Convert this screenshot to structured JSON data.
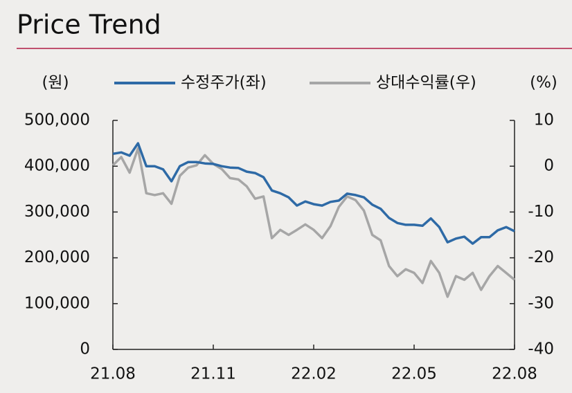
{
  "chart_data": {
    "type": "line",
    "title": "Price Trend",
    "y_unit_label": "(원)",
    "y2_unit_label": "(%)",
    "x": [
      0,
      0.25,
      0.5,
      0.75,
      1,
      1.25,
      1.5,
      1.75,
      2,
      2.25,
      2.5,
      2.75,
      3,
      3.25,
      3.5,
      3.75,
      4,
      4.25,
      4.5,
      4.75,
      5,
      5.25,
      5.5,
      5.75,
      6,
      6.25,
      6.5,
      6.75,
      7,
      7.25,
      7.5,
      7.75,
      8,
      8.25,
      8.5,
      8.75,
      9,
      9.25,
      9.5,
      9.75,
      10,
      10.25,
      10.5,
      10.75,
      11,
      11.25,
      11.5,
      11.75,
      12
    ],
    "xlim": [
      0,
      12
    ],
    "xticks": [
      {
        "value": 0,
        "label": "21.08"
      },
      {
        "value": 3,
        "label": "21.11"
      },
      {
        "value": 6,
        "label": "22.02"
      },
      {
        "value": 9,
        "label": "22.05"
      },
      {
        "value": 12,
        "label": "22.08"
      }
    ],
    "ylim": [
      0,
      500000
    ],
    "yticks": [
      0,
      {
        "value": 100000,
        "label": "100,000"
      },
      {
        "value": 200000,
        "label": "200,000"
      },
      {
        "value": 300000,
        "label": "300,000"
      },
      {
        "value": 400000,
        "label": "400,000"
      },
      {
        "value": 500000,
        "label": "500,000"
      }
    ],
    "y2lim": [
      -40,
      10
    ],
    "y2ticks": [
      -40,
      -30,
      -20,
      -10,
      0,
      10
    ],
    "legend": "top",
    "series": [
      {
        "name": "수정주가(좌)",
        "color": "#2e6aa6",
        "axis": "y",
        "values": [
          427000,
          430000,
          423000,
          450000,
          400000,
          400000,
          393000,
          367000,
          400000,
          409000,
          409000,
          406000,
          405000,
          400000,
          397000,
          396000,
          388000,
          385000,
          376000,
          347000,
          341000,
          332000,
          314000,
          323000,
          317000,
          314000,
          322000,
          325000,
          340000,
          337000,
          332000,
          316000,
          307000,
          287000,
          276000,
          272000,
          272000,
          270000,
          286000,
          267000,
          234000,
          242000,
          246000,
          231000,
          245000,
          245000,
          260000,
          267000,
          258000
        ]
      },
      {
        "name": "상대수익률(우)",
        "color": "#a6a6a6",
        "axis": "y2",
        "values": [
          0.2,
          2.0,
          -1.4,
          3.9,
          -5.9,
          -6.3,
          -5.9,
          -8.2,
          -2.1,
          -0.3,
          0.2,
          2.4,
          0.5,
          -0.6,
          -2.6,
          -2.9,
          -4.4,
          -7.1,
          -6.6,
          -15.7,
          -13.9,
          -15.0,
          -13.9,
          -12.7,
          -13.9,
          -15.7,
          -13.1,
          -8.9,
          -6.6,
          -7.4,
          -9.7,
          -15.0,
          -16.2,
          -21.8,
          -24.0,
          -22.5,
          -23.3,
          -25.5,
          -20.7,
          -23.3,
          -28.5,
          -24.0,
          -24.8,
          -23.3,
          -27.0,
          -24.0,
          -21.8,
          -23.3,
          -24.8
        ]
      }
    ]
  }
}
